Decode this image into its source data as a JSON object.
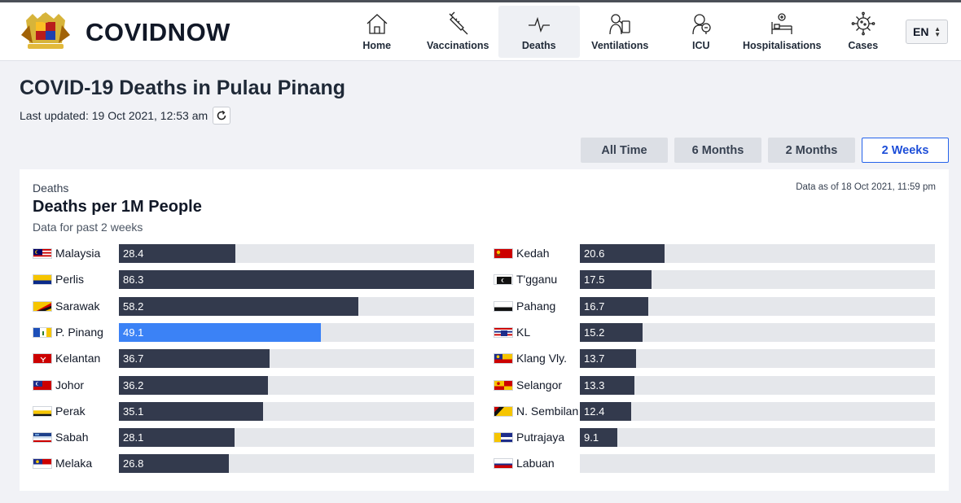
{
  "app": {
    "brand": "COVIDNOW"
  },
  "nav": [
    {
      "label": "Home",
      "icon": "home-icon",
      "active": false
    },
    {
      "label": "Vaccinations",
      "icon": "syringe-icon",
      "active": false
    },
    {
      "label": "Deaths",
      "icon": "pulse-icon",
      "active": true
    },
    {
      "label": "Ventilations",
      "icon": "ventilator-icon",
      "active": false
    },
    {
      "label": "ICU",
      "icon": "icu-icon",
      "active": false
    },
    {
      "label": "Hospitalisations",
      "icon": "hospital-bed-icon",
      "active": false
    },
    {
      "label": "Cases",
      "icon": "virus-icon",
      "active": false
    }
  ],
  "language": {
    "selected": "EN"
  },
  "page": {
    "title": "COVID-19 Deaths in Pulau Pinang",
    "last_updated": "Last updated: 19 Oct 2021, 12:53 am"
  },
  "ranges": [
    {
      "label": "All Time",
      "active": false
    },
    {
      "label": "6 Months",
      "active": false
    },
    {
      "label": "2 Months",
      "active": false
    },
    {
      "label": "2 Weeks",
      "active": true
    }
  ],
  "card": {
    "category": "Deaths",
    "title": "Deaths per 1M People",
    "subtitle": "Data for past 2 weeks",
    "as_of": "Data as of 18 Oct 2021, 11:59 pm"
  },
  "colors": {
    "bar": "#333a4d",
    "highlight": "#3b82f6",
    "track": "#e5e7eb",
    "accent": "#2563eb"
  },
  "chart_data": {
    "type": "bar",
    "orientation": "horizontal",
    "title": "Deaths per 1M People",
    "xlim": [
      0,
      86.3
    ],
    "highlight": "P. Pinang",
    "left_column": [
      {
        "state": "Malaysia",
        "value": 28.4,
        "label": "28.4"
      },
      {
        "state": "Perlis",
        "value": 86.3,
        "label": "86.3"
      },
      {
        "state": "Sarawak",
        "value": 58.2,
        "label": "58.2"
      },
      {
        "state": "P. Pinang",
        "value": 49.1,
        "label": "49.1"
      },
      {
        "state": "Kelantan",
        "value": 36.7,
        "label": "36.7"
      },
      {
        "state": "Johor",
        "value": 36.2,
        "label": "36.2"
      },
      {
        "state": "Perak",
        "value": 35.1,
        "label": "35.1"
      },
      {
        "state": "Sabah",
        "value": 28.1,
        "label": "28.1"
      },
      {
        "state": "Melaka",
        "value": 26.8,
        "label": "26.8"
      }
    ],
    "right_column": [
      {
        "state": "Kedah",
        "value": 20.6,
        "label": "20.6"
      },
      {
        "state": "T'gganu",
        "value": 17.5,
        "label": "17.5"
      },
      {
        "state": "Pahang",
        "value": 16.7,
        "label": "16.7"
      },
      {
        "state": "KL",
        "value": 15.2,
        "label": "15.2"
      },
      {
        "state": "Klang Vly.",
        "value": 13.7,
        "label": "13.7"
      },
      {
        "state": "Selangor",
        "value": 13.3,
        "label": "13.3"
      },
      {
        "state": "N. Sembilan",
        "value": 12.4,
        "label": "12.4"
      },
      {
        "state": "Putrajaya",
        "value": 9.1,
        "label": "9.1"
      },
      {
        "state": "Labuan",
        "value": 0,
        "label": ""
      }
    ]
  }
}
